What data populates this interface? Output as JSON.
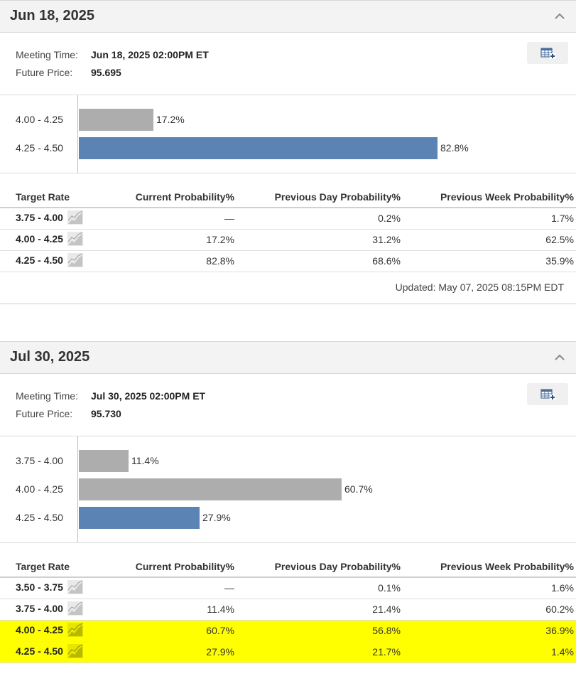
{
  "colors": {
    "bar_gray": "#adadad",
    "bar_blue": "#5b83b3",
    "highlight": "#ffff00"
  },
  "icons": {
    "collapse": "chevron-up-icon",
    "export": "table-add-icon",
    "trend": "trend-chart-icon"
  },
  "meetings": [
    {
      "title": "Jun 18, 2025",
      "meeting_time_label": "Meeting Time:",
      "meeting_time": "Jun 18, 2025 02:00PM ET",
      "future_price_label": "Future Price:",
      "future_price": "95.695",
      "bars": [
        {
          "label": "4.00 - 4.25",
          "value": 17.2,
          "text": "17.2%",
          "color": "gray"
        },
        {
          "label": "4.25 - 4.50",
          "value": 82.8,
          "text": "82.8%",
          "color": "blue"
        }
      ],
      "table": {
        "headers": [
          "Target Rate",
          "Current Probability%",
          "Previous Day Probability%",
          "Previous Week Probability%"
        ],
        "rows": [
          {
            "rate": "3.75 - 4.00",
            "current": "—",
            "prev_day": "0.2%",
            "prev_week": "1.7%",
            "highlight": false
          },
          {
            "rate": "4.00 - 4.25",
            "current": "17.2%",
            "prev_day": "31.2%",
            "prev_week": "62.5%",
            "highlight": false
          },
          {
            "rate": "4.25 - 4.50",
            "current": "82.8%",
            "prev_day": "68.6%",
            "prev_week": "35.9%",
            "highlight": false
          }
        ]
      },
      "updated": "Updated: May 07, 2025 08:15PM EDT"
    },
    {
      "title": "Jul 30, 2025",
      "meeting_time_label": "Meeting Time:",
      "meeting_time": "Jul 30, 2025 02:00PM ET",
      "future_price_label": "Future Price:",
      "future_price": "95.730",
      "bars": [
        {
          "label": "3.75 - 4.00",
          "value": 11.4,
          "text": "11.4%",
          "color": "gray"
        },
        {
          "label": "4.00 - 4.25",
          "value": 60.7,
          "text": "60.7%",
          "color": "gray"
        },
        {
          "label": "4.25 - 4.50",
          "value": 27.9,
          "text": "27.9%",
          "color": "blue"
        }
      ],
      "table": {
        "headers": [
          "Target Rate",
          "Current Probability%",
          "Previous Day Probability%",
          "Previous Week Probability%"
        ],
        "rows": [
          {
            "rate": "3.50 - 3.75",
            "current": "—",
            "prev_day": "0.1%",
            "prev_week": "1.6%",
            "highlight": false
          },
          {
            "rate": "3.75 - 4.00",
            "current": "11.4%",
            "prev_day": "21.4%",
            "prev_week": "60.2%",
            "highlight": false
          },
          {
            "rate": "4.00 - 4.25",
            "current": "60.7%",
            "prev_day": "56.8%",
            "prev_week": "36.9%",
            "highlight": true
          },
          {
            "rate": "4.25 - 4.50",
            "current": "27.9%",
            "prev_day": "21.7%",
            "prev_week": "1.4%",
            "highlight": true
          }
        ]
      }
    }
  ]
}
